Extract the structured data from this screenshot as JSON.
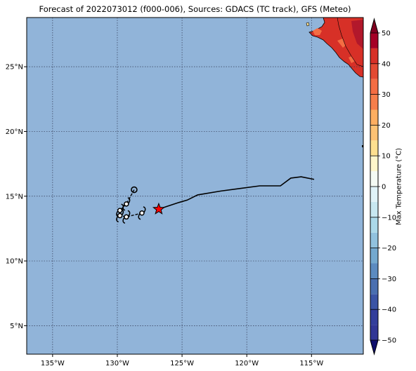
{
  "title": "Forecast of 2022073012 (f000-006), Sources: GDACS (TC track), GFS (Meteo)",
  "map": {
    "lon_range": [
      -137,
      -111
    ],
    "lat_range": [
      2.8,
      28.8
    ],
    "ocean_color": "#91b4d9",
    "grid": "dotted",
    "lon_ticks": [
      {
        "value": -135,
        "label": "135°W"
      },
      {
        "value": -130,
        "label": "130°W"
      },
      {
        "value": -125,
        "label": "125°W"
      },
      {
        "value": -120,
        "label": "120°W"
      },
      {
        "value": -115,
        "label": "115°W"
      }
    ],
    "lat_ticks": [
      {
        "value": 5,
        "label": "5°N"
      },
      {
        "value": 10,
        "label": "10°N"
      },
      {
        "value": 15,
        "label": "15°N"
      },
      {
        "value": 20,
        "label": "20°N"
      },
      {
        "value": 25,
        "label": "25°N"
      }
    ]
  },
  "track": {
    "line": [
      [
        -114.8,
        16.3
      ],
      [
        -115.8,
        16.5
      ],
      [
        -116.6,
        16.4
      ],
      [
        -117.4,
        15.8
      ],
      [
        -119.0,
        15.8
      ],
      [
        -120.5,
        15.6
      ],
      [
        -122.0,
        15.4
      ],
      [
        -123.8,
        15.1
      ],
      [
        -124.6,
        14.7
      ],
      [
        -125.3,
        14.5
      ],
      [
        -126.2,
        14.2
      ],
      [
        -126.8,
        14.0
      ]
    ],
    "current_position": {
      "lon": -126.8,
      "lat": 14.0,
      "icon": "star-icon",
      "color": "#ff0000"
    },
    "symbols": [
      {
        "lon": -128.7,
        "lat": 15.5,
        "kind": "open-circle"
      },
      {
        "lon": -129.3,
        "lat": 14.4,
        "kind": "tc-symbol"
      },
      {
        "lon": -129.8,
        "lat": 13.9,
        "kind": "tc-symbol"
      },
      {
        "lon": -129.8,
        "lat": 13.5,
        "kind": "tc-symbol"
      },
      {
        "lon": -129.3,
        "lat": 13.4,
        "kind": "tc-symbol"
      },
      {
        "lon": -128.1,
        "lat": 13.7,
        "kind": "tc-symbol"
      }
    ]
  },
  "colorbar": {
    "label": "Max Temperature (°C)",
    "min": -50,
    "max": 50,
    "step": 10,
    "tick_labels": [
      "−50",
      "−40",
      "−30",
      "−20",
      "−10",
      "0",
      "10",
      "20",
      "30",
      "40",
      "50"
    ],
    "levels": [
      {
        "from": -50,
        "to": -45,
        "color": "#313695"
      },
      {
        "from": -45,
        "to": -40,
        "color": "#333e9b"
      },
      {
        "from": -40,
        "to": -35,
        "color": "#3b54a5"
      },
      {
        "from": -35,
        "to": -30,
        "color": "#4a6fb0"
      },
      {
        "from": -30,
        "to": -25,
        "color": "#5c8bc0"
      },
      {
        "from": -25,
        "to": -20,
        "color": "#74a9cf"
      },
      {
        "from": -20,
        "to": -15,
        "color": "#91c2de"
      },
      {
        "from": -15,
        "to": -10,
        "color": "#abd9e9"
      },
      {
        "from": -10,
        "to": -5,
        "color": "#c8e8f1"
      },
      {
        "from": -5,
        "to": 0,
        "color": "#e0f3f8"
      },
      {
        "from": 0,
        "to": 5,
        "color": "#f5fbf4"
      },
      {
        "from": 5,
        "to": 10,
        "color": "#fff6cb"
      },
      {
        "from": 10,
        "to": 15,
        "color": "#fee090"
      },
      {
        "from": 15,
        "to": 20,
        "color": "#fdc274"
      },
      {
        "from": 20,
        "to": 25,
        "color": "#fdae61"
      },
      {
        "from": 25,
        "to": 30,
        "color": "#f67e4b"
      },
      {
        "from": 30,
        "to": 35,
        "color": "#f46d43"
      },
      {
        "from": 35,
        "to": 40,
        "color": "#e34a33"
      },
      {
        "from": 40,
        "to": 45,
        "color": "#d73027"
      },
      {
        "from": 45,
        "to": 50,
        "color": "#a50026"
      }
    ],
    "under_color": "#0d0d6b",
    "over_color": "#800020"
  }
}
